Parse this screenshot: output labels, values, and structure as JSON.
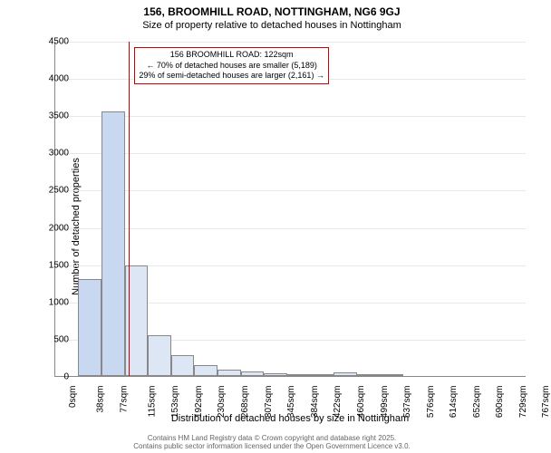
{
  "title": "156, BROOMHILL ROAD, NOTTINGHAM, NG6 9GJ",
  "subtitle": "Size of property relative to detached houses in Nottingham",
  "chart": {
    "type": "histogram",
    "ylabel": "Number of detached properties",
    "xlabel": "Distribution of detached houses by size in Nottingham",
    "ylim": [
      0,
      4500
    ],
    "ytick_step": 500,
    "yticks": [
      0,
      500,
      1000,
      1500,
      2000,
      2500,
      3000,
      3500,
      4000,
      4500
    ],
    "xticks": [
      "0sqm",
      "38sqm",
      "77sqm",
      "115sqm",
      "153sqm",
      "192sqm",
      "230sqm",
      "268sqm",
      "307sqm",
      "345sqm",
      "384sqm",
      "422sqm",
      "460sqm",
      "499sqm",
      "537sqm",
      "576sqm",
      "614sqm",
      "652sqm",
      "690sqm",
      "729sqm",
      "767sqm"
    ],
    "xtick_positions": [
      0,
      38,
      77,
      115,
      153,
      192,
      230,
      268,
      307,
      345,
      384,
      422,
      460,
      499,
      537,
      576,
      614,
      652,
      690,
      729,
      767
    ],
    "xmax": 780,
    "bars": [
      {
        "x": 38,
        "width": 39,
        "value": 1300,
        "color": "#c8d8f0"
      },
      {
        "x": 77,
        "width": 38,
        "value": 3550,
        "color": "#c8d8f0"
      },
      {
        "x": 115,
        "width": 38,
        "value": 1480,
        "color": "#dce6f5"
      },
      {
        "x": 153,
        "width": 39,
        "value": 550,
        "color": "#dce6f5"
      },
      {
        "x": 192,
        "width": 38,
        "value": 280,
        "color": "#dce6f5"
      },
      {
        "x": 230,
        "width": 38,
        "value": 150,
        "color": "#dce6f5"
      },
      {
        "x": 268,
        "width": 39,
        "value": 90,
        "color": "#dce6f5"
      },
      {
        "x": 307,
        "width": 38,
        "value": 60,
        "color": "#dce6f5"
      },
      {
        "x": 345,
        "width": 39,
        "value": 40,
        "color": "#dce6f5"
      },
      {
        "x": 384,
        "width": 38,
        "value": 30,
        "color": "#dce6f5"
      },
      {
        "x": 422,
        "width": 38,
        "value": 20,
        "color": "#dce6f5"
      },
      {
        "x": 460,
        "width": 39,
        "value": 50,
        "color": "#dce6f5"
      },
      {
        "x": 499,
        "width": 38,
        "value": 15,
        "color": "#dce6f5"
      },
      {
        "x": 537,
        "width": 39,
        "value": 10,
        "color": "#dce6f5"
      }
    ],
    "marker": {
      "x": 122,
      "color": "#cc0000"
    },
    "info_box": {
      "line1": "156 BROOMHILL ROAD: 122sqm",
      "line2": "← 70% of detached houses are smaller (5,189)",
      "line3": "29% of semi-detached houses are larger (2,161) →",
      "border_color": "#cc0000"
    },
    "background_color": "#ffffff",
    "grid_color": "#e8e8e8",
    "axis_color": "#888888"
  },
  "footer": {
    "line1": "Contains HM Land Registry data © Crown copyright and database right 2025.",
    "line2": "Contains public sector information licensed under the Open Government Licence v3.0."
  }
}
